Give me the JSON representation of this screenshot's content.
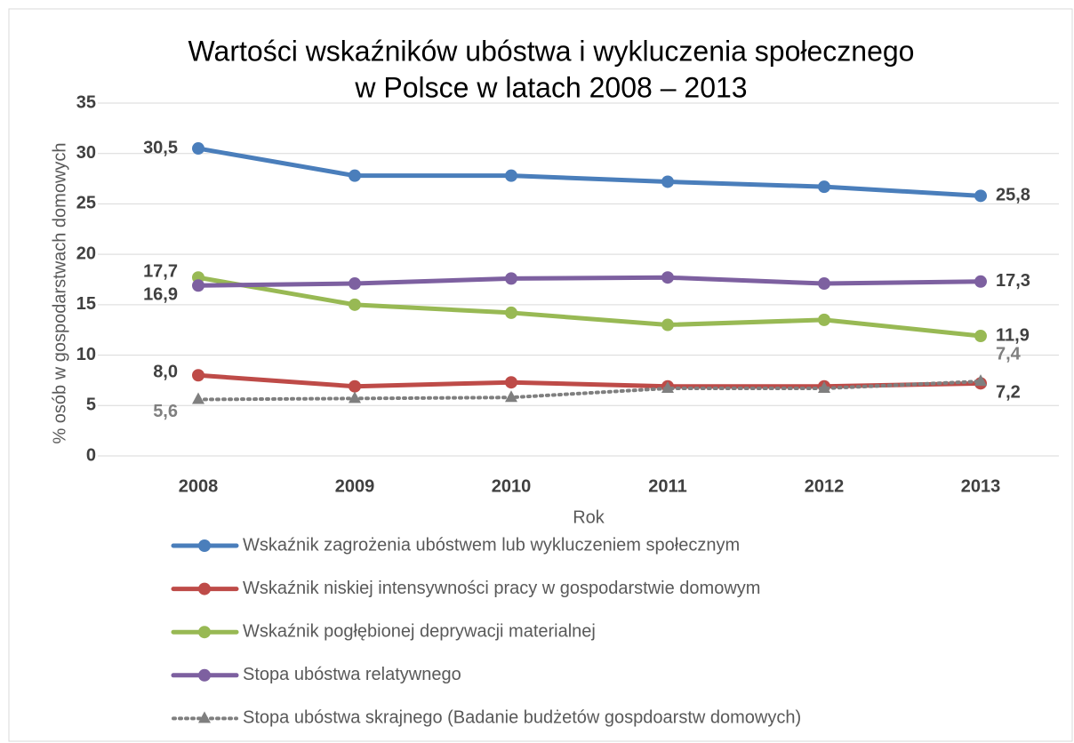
{
  "chart_data": {
    "type": "line",
    "title": [
      "Wartości wskaźników ubóstwa i wykluczenia społecznego",
      "w Polsce w latach 2008 – 2013"
    ],
    "x_label": "Rok",
    "y_label": "% osób w gospodarstwach domowych",
    "categories": [
      "2008",
      "2009",
      "2010",
      "2011",
      "2012",
      "2013"
    ],
    "ylim": [
      0,
      35
    ],
    "yticks": [
      0,
      5,
      10,
      15,
      20,
      25,
      30,
      35
    ],
    "grid": true,
    "legend": "bottom",
    "series": [
      {
        "name": "Wskaźnik zagrożenia ubóstwem lub wykluczeniem społecznym",
        "color": "#4a7ebb",
        "marker": "circle",
        "dash": "solid",
        "values": [
          30.5,
          27.8,
          27.8,
          27.2,
          26.7,
          25.8
        ],
        "value_labels": [
          "30,5",
          null,
          null,
          null,
          null,
          "25,8"
        ]
      },
      {
        "name": "Wskaźnik niskiej intensywności pracy w gospodarstwie domowym",
        "color": "#be4b48",
        "marker": "circle",
        "dash": "solid",
        "values": [
          8.0,
          6.9,
          7.3,
          6.9,
          6.9,
          7.2
        ],
        "value_labels": [
          "8,0",
          null,
          null,
          null,
          null,
          "7,2"
        ]
      },
      {
        "name": "Wskaźnik pogłębionej deprywacji materialnej",
        "color": "#98b954",
        "marker": "circle",
        "dash": "solid",
        "values": [
          17.7,
          15.0,
          14.2,
          13.0,
          13.5,
          11.9
        ],
        "value_labels": [
          "17,7",
          null,
          null,
          null,
          null,
          "11,9"
        ]
      },
      {
        "name": "Stopa ubóstwa relatywnego",
        "color": "#7d60a0",
        "marker": "circle",
        "dash": "solid",
        "values": [
          16.9,
          17.1,
          17.6,
          17.7,
          17.1,
          17.3
        ],
        "value_labels": [
          "16,9",
          null,
          null,
          null,
          null,
          "17,3"
        ]
      },
      {
        "name": "Stopa ubóstwa skrajnego (Badanie budżetów gospdoarstw domowych)",
        "color": "#7f7f7f",
        "marker": "triangle",
        "dash": "dotted",
        "values": [
          5.6,
          5.7,
          5.8,
          6.7,
          6.7,
          7.4
        ],
        "value_labels": [
          "5,6",
          null,
          null,
          null,
          null,
          "7,4"
        ]
      }
    ]
  }
}
